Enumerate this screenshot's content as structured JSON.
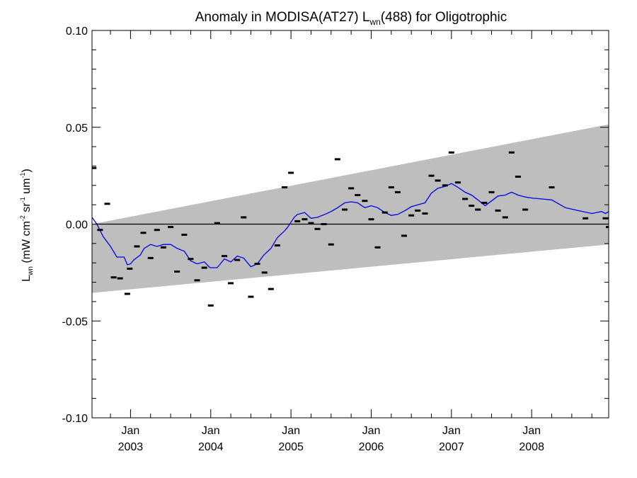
{
  "chart_data": {
    "type": "scatter",
    "title_main": "Anomaly in MODISA(AT27) L",
    "title_sub": "wn",
    "title_tail": "(488) for Oligotrophic",
    "ylabel_main": "L",
    "ylabel_sub": "wn",
    "ylabel_units": "(mW cm",
    "ylabel_units_sup1": "-2",
    "ylabel_units_mid": " sr",
    "ylabel_units_sup2": "-1",
    "ylabel_units_mid2": " um",
    "ylabel_units_sup3": "-1",
    "ylabel_units_end": ")",
    "ylim": [
      -0.1,
      0.1
    ],
    "yticks": [
      "0.10",
      "0.05",
      "0.00",
      "-0.05",
      "-0.10"
    ],
    "ytick_values": [
      0.1,
      0.05,
      0.0,
      -0.05,
      -0.1
    ],
    "xlim": [
      2002.52,
      2008.96
    ],
    "xticks": [
      {
        "line1": "Jan",
        "line2": "2003",
        "value": 2003.0
      },
      {
        "line1": "Jan",
        "line2": "2004",
        "value": 2004.0
      },
      {
        "line1": "Jan",
        "line2": "2005",
        "value": 2005.0
      },
      {
        "line1": "Jan",
        "line2": "2006",
        "value": 2006.0
      },
      {
        "line1": "Jan",
        "line2": "2007",
        "value": 2007.0
      },
      {
        "line1": "Jan",
        "line2": "2008",
        "value": 2008.0
      }
    ],
    "band": {
      "x": [
        2002.52,
        2008.96
      ],
      "upper": [
        0.0,
        0.0515
      ],
      "lower": [
        -0.0355,
        -0.0105
      ]
    },
    "zero_line": 0.0,
    "points": [
      {
        "x": 2002.54,
        "y": 0.029
      },
      {
        "x": 2002.62,
        "y": -0.003
      },
      {
        "x": 2002.71,
        "y": 0.0105
      },
      {
        "x": 2002.79,
        "y": -0.0275
      },
      {
        "x": 2002.87,
        "y": -0.028
      },
      {
        "x": 2002.96,
        "y": -0.036
      },
      {
        "x": 2002.99,
        "y": -0.023
      },
      {
        "x": 2003.08,
        "y": -0.0115
      },
      {
        "x": 2003.16,
        "y": -0.0045
      },
      {
        "x": 2003.25,
        "y": -0.0175
      },
      {
        "x": 2003.33,
        "y": -0.003
      },
      {
        "x": 2003.41,
        "y": -0.012
      },
      {
        "x": 2003.5,
        "y": -0.0015
      },
      {
        "x": 2003.58,
        "y": -0.0245
      },
      {
        "x": 2003.67,
        "y": -0.0055
      },
      {
        "x": 2003.75,
        "y": -0.018
      },
      {
        "x": 2003.83,
        "y": -0.029
      },
      {
        "x": 2003.92,
        "y": -0.0225
      },
      {
        "x": 2004.0,
        "y": -0.042
      },
      {
        "x": 2004.08,
        "y": 0.0005
      },
      {
        "x": 2004.17,
        "y": -0.0165
      },
      {
        "x": 2004.25,
        "y": -0.0305
      },
      {
        "x": 2004.33,
        "y": -0.0185
      },
      {
        "x": 2004.41,
        "y": 0.0035
      },
      {
        "x": 2004.5,
        "y": -0.0375
      },
      {
        "x": 2004.58,
        "y": -0.0205
      },
      {
        "x": 2004.67,
        "y": -0.025
      },
      {
        "x": 2004.75,
        "y": -0.0335
      },
      {
        "x": 2004.83,
        "y": -0.011
      },
      {
        "x": 2004.92,
        "y": 0.019
      },
      {
        "x": 2005.0,
        "y": 0.0265
      },
      {
        "x": 2005.08,
        "y": 0.0015
      },
      {
        "x": 2005.17,
        "y": 0.0025
      },
      {
        "x": 2005.25,
        "y": 0.0005
      },
      {
        "x": 2005.33,
        "y": -0.0025
      },
      {
        "x": 2005.41,
        "y": 0.0
      },
      {
        "x": 2005.5,
        "y": -0.0105
      },
      {
        "x": 2005.58,
        "y": 0.0335
      },
      {
        "x": 2005.67,
        "y": 0.0075
      },
      {
        "x": 2005.75,
        "y": 0.0185
      },
      {
        "x": 2005.83,
        "y": 0.015
      },
      {
        "x": 2005.92,
        "y": 0.012
      },
      {
        "x": 2006.0,
        "y": 0.0025
      },
      {
        "x": 2006.08,
        "y": -0.012
      },
      {
        "x": 2006.17,
        "y": 0.006
      },
      {
        "x": 2006.25,
        "y": 0.019
      },
      {
        "x": 2006.33,
        "y": 0.0165
      },
      {
        "x": 2006.41,
        "y": -0.006
      },
      {
        "x": 2006.5,
        "y": 0.0045
      },
      {
        "x": 2006.58,
        "y": 0.007
      },
      {
        "x": 2006.67,
        "y": 0.0055
      },
      {
        "x": 2006.75,
        "y": 0.025
      },
      {
        "x": 2006.83,
        "y": 0.0225
      },
      {
        "x": 2006.92,
        "y": 0.02
      },
      {
        "x": 2007.0,
        "y": 0.037
      },
      {
        "x": 2007.08,
        "y": 0.0215
      },
      {
        "x": 2007.17,
        "y": 0.013
      },
      {
        "x": 2007.25,
        "y": 0.0095
      },
      {
        "x": 2007.33,
        "y": 0.0075
      },
      {
        "x": 2007.41,
        "y": 0.011
      },
      {
        "x": 2007.5,
        "y": 0.0165
      },
      {
        "x": 2007.58,
        "y": 0.007
      },
      {
        "x": 2007.67,
        "y": 0.0035
      },
      {
        "x": 2007.75,
        "y": 0.037
      },
      {
        "x": 2007.83,
        "y": 0.0245
      },
      {
        "x": 2007.92,
        "y": 0.0075
      },
      {
        "x": 2008.25,
        "y": 0.019
      },
      {
        "x": 2008.67,
        "y": 0.003
      },
      {
        "x": 2008.92,
        "y": 0.003
      },
      {
        "x": 2009.0,
        "y": -0.0015
      }
    ],
    "trend": [
      [
        2002.52,
        0.0035
      ],
      [
        2002.58,
        0.0
      ],
      [
        2002.66,
        -0.0065
      ],
      [
        2002.75,
        -0.0115
      ],
      [
        2002.83,
        -0.017
      ],
      [
        2002.92,
        -0.017
      ],
      [
        2002.96,
        -0.021
      ],
      [
        2003.0,
        -0.0205
      ],
      [
        2003.04,
        -0.0185
      ],
      [
        2003.12,
        -0.016
      ],
      [
        2003.17,
        -0.0125
      ],
      [
        2003.25,
        -0.0105
      ],
      [
        2003.33,
        -0.0115
      ],
      [
        2003.41,
        -0.0105
      ],
      [
        2003.5,
        -0.0105
      ],
      [
        2003.58,
        -0.0125
      ],
      [
        2003.67,
        -0.014
      ],
      [
        2003.75,
        -0.019
      ],
      [
        2003.83,
        -0.0205
      ],
      [
        2003.92,
        -0.0195
      ],
      [
        2003.99,
        -0.0225
      ],
      [
        2004.08,
        -0.0225
      ],
      [
        2004.17,
        -0.018
      ],
      [
        2004.25,
        -0.0195
      ],
      [
        2004.33,
        -0.0165
      ],
      [
        2004.41,
        -0.0175
      ],
      [
        2004.5,
        -0.022
      ],
      [
        2004.58,
        -0.0205
      ],
      [
        2004.66,
        -0.016
      ],
      [
        2004.75,
        -0.0125
      ],
      [
        2004.83,
        -0.007
      ],
      [
        2004.92,
        -0.0035
      ],
      [
        2004.96,
        -0.0015
      ],
      [
        2005.0,
        0.001
      ],
      [
        2005.04,
        0.0035
      ],
      [
        2005.08,
        0.005
      ],
      [
        2005.17,
        0.006
      ],
      [
        2005.25,
        0.003
      ],
      [
        2005.33,
        0.0035
      ],
      [
        2005.42,
        0.005
      ],
      [
        2005.5,
        0.0065
      ],
      [
        2005.58,
        0.0085
      ],
      [
        2005.67,
        0.011
      ],
      [
        2005.75,
        0.0115
      ],
      [
        2005.83,
        0.011
      ],
      [
        2005.92,
        0.0085
      ],
      [
        2006.0,
        0.0095
      ],
      [
        2006.08,
        0.0085
      ],
      [
        2006.17,
        0.006
      ],
      [
        2006.25,
        0.0045
      ],
      [
        2006.33,
        0.005
      ],
      [
        2006.42,
        0.007
      ],
      [
        2006.5,
        0.009
      ],
      [
        2006.58,
        0.01
      ],
      [
        2006.67,
        0.011
      ],
      [
        2006.75,
        0.016
      ],
      [
        2006.83,
        0.0185
      ],
      [
        2006.92,
        0.0195
      ],
      [
        2007.0,
        0.021
      ],
      [
        2007.08,
        0.019
      ],
      [
        2007.17,
        0.0165
      ],
      [
        2007.25,
        0.015
      ],
      [
        2007.33,
        0.0125
      ],
      [
        2007.42,
        0.0095
      ],
      [
        2007.5,
        0.012
      ],
      [
        2007.58,
        0.0145
      ],
      [
        2007.67,
        0.015
      ],
      [
        2007.75,
        0.0165
      ],
      [
        2007.83,
        0.015
      ],
      [
        2007.92,
        0.014
      ],
      [
        2008.0,
        0.0135
      ],
      [
        2008.25,
        0.0125
      ],
      [
        2008.42,
        0.0085
      ],
      [
        2008.58,
        0.007
      ],
      [
        2008.75,
        0.0055
      ],
      [
        2008.87,
        0.0065
      ],
      [
        2008.92,
        0.0055
      ],
      [
        2008.96,
        0.0065
      ]
    ],
    "grid": false,
    "colors": {
      "band": "#bebebe",
      "trend": "#0000ee",
      "points": "#000000",
      "zero_line": "#000000"
    }
  }
}
